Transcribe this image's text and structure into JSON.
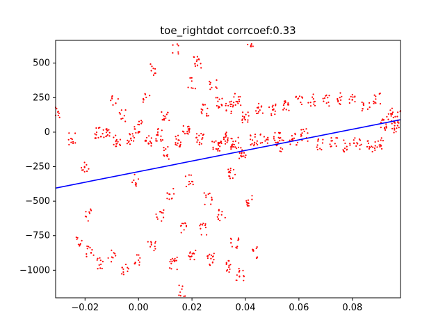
{
  "chart_data": {
    "type": "scatter",
    "title": "toe_rightdot corrcoef:0.33",
    "xlabel": "",
    "ylabel": "",
    "xlim": [
      -0.031,
      0.098
    ],
    "ylim": [
      -1200,
      665
    ],
    "xticks": [
      -0.02,
      0.0,
      0.02,
      0.04,
      0.06,
      0.08
    ],
    "xtick_labels": [
      "−0.02",
      "0.00",
      "0.02",
      "0.04",
      "0.06",
      "0.08"
    ],
    "yticks": [
      500,
      250,
      0,
      -250,
      -500,
      -750,
      -1000
    ],
    "ytick_labels": [
      "500",
      "250",
      "0",
      "−250",
      "−500",
      "−750",
      "−1000"
    ],
    "grid": false,
    "legend": "none",
    "scatter_color": "#ff0000",
    "line_color": "#0000ff",
    "fit_line": {
      "x": [
        -0.031,
        0.098
      ],
      "y": [
        -405,
        90
      ]
    },
    "clusters": [
      {
        "x": -0.03,
        "y": 145,
        "n": 8
      },
      {
        "x": -0.025,
        "y": -50,
        "n": 10
      },
      {
        "x": -0.022,
        "y": -800,
        "n": 8
      },
      {
        "x": -0.02,
        "y": -250,
        "n": 10
      },
      {
        "x": -0.019,
        "y": -600,
        "n": 8
      },
      {
        "x": -0.018,
        "y": -870,
        "n": 10
      },
      {
        "x": -0.015,
        "y": 0,
        "n": 12
      },
      {
        "x": -0.014,
        "y": -950,
        "n": 10
      },
      {
        "x": -0.012,
        "y": -20,
        "n": 14
      },
      {
        "x": -0.01,
        "y": -900,
        "n": 8
      },
      {
        "x": -0.009,
        "y": 240,
        "n": 8
      },
      {
        "x": -0.008,
        "y": -60,
        "n": 14
      },
      {
        "x": -0.006,
        "y": 120,
        "n": 8
      },
      {
        "x": -0.005,
        "y": -1000,
        "n": 10
      },
      {
        "x": -0.003,
        "y": -50,
        "n": 14
      },
      {
        "x": -0.001,
        "y": -350,
        "n": 8
      },
      {
        "x": 0.0,
        "y": 40,
        "n": 14
      },
      {
        "x": 0.0,
        "y": -930,
        "n": 10
      },
      {
        "x": 0.003,
        "y": 250,
        "n": 8
      },
      {
        "x": 0.004,
        "y": -60,
        "n": 14
      },
      {
        "x": 0.005,
        "y": -820,
        "n": 10
      },
      {
        "x": 0.006,
        "y": 450,
        "n": 8
      },
      {
        "x": 0.008,
        "y": -20,
        "n": 14
      },
      {
        "x": 0.008,
        "y": -600,
        "n": 10
      },
      {
        "x": 0.01,
        "y": -150,
        "n": 10
      },
      {
        "x": 0.01,
        "y": 120,
        "n": 12
      },
      {
        "x": 0.012,
        "y": -450,
        "n": 10
      },
      {
        "x": 0.013,
        "y": -950,
        "n": 14
      },
      {
        "x": 0.014,
        "y": 600,
        "n": 6
      },
      {
        "x": 0.015,
        "y": -60,
        "n": 14
      },
      {
        "x": 0.016,
        "y": -1150,
        "n": 8
      },
      {
        "x": 0.017,
        "y": -700,
        "n": 10
      },
      {
        "x": 0.018,
        "y": 20,
        "n": 14
      },
      {
        "x": 0.019,
        "y": -350,
        "n": 10
      },
      {
        "x": 0.02,
        "y": -880,
        "n": 12
      },
      {
        "x": 0.02,
        "y": 350,
        "n": 8
      },
      {
        "x": 0.022,
        "y": 510,
        "n": 14
      },
      {
        "x": 0.023,
        "y": -50,
        "n": 14
      },
      {
        "x": 0.024,
        "y": -700,
        "n": 10
      },
      {
        "x": 0.025,
        "y": 160,
        "n": 12
      },
      {
        "x": 0.026,
        "y": -480,
        "n": 10
      },
      {
        "x": 0.027,
        "y": -920,
        "n": 14
      },
      {
        "x": 0.028,
        "y": 350,
        "n": 8
      },
      {
        "x": 0.029,
        "y": -100,
        "n": 16
      },
      {
        "x": 0.03,
        "y": 220,
        "n": 12
      },
      {
        "x": 0.031,
        "y": -600,
        "n": 10
      },
      {
        "x": 0.032,
        "y": -40,
        "n": 18
      },
      {
        "x": 0.033,
        "y": -970,
        "n": 12
      },
      {
        "x": 0.034,
        "y": 180,
        "n": 14
      },
      {
        "x": 0.035,
        "y": -300,
        "n": 12
      },
      {
        "x": 0.036,
        "y": -80,
        "n": 18
      },
      {
        "x": 0.036,
        "y": -800,
        "n": 10
      },
      {
        "x": 0.037,
        "y": 240,
        "n": 14
      },
      {
        "x": 0.038,
        "y": -1030,
        "n": 12
      },
      {
        "x": 0.039,
        "y": -150,
        "n": 14
      },
      {
        "x": 0.04,
        "y": 100,
        "n": 14
      },
      {
        "x": 0.041,
        "y": -500,
        "n": 10
      },
      {
        "x": 0.042,
        "y": 640,
        "n": 6
      },
      {
        "x": 0.043,
        "y": -60,
        "n": 14
      },
      {
        "x": 0.044,
        "y": -870,
        "n": 10
      },
      {
        "x": 0.045,
        "y": 180,
        "n": 12
      },
      {
        "x": 0.047,
        "y": -40,
        "n": 12
      },
      {
        "x": 0.05,
        "y": 160,
        "n": 12
      },
      {
        "x": 0.052,
        "y": -30,
        "n": 12
      },
      {
        "x": 0.053,
        "y": -100,
        "n": 10
      },
      {
        "x": 0.055,
        "y": 200,
        "n": 12
      },
      {
        "x": 0.058,
        "y": -50,
        "n": 12
      },
      {
        "x": 0.06,
        "y": 220,
        "n": 10
      },
      {
        "x": 0.062,
        "y": -20,
        "n": 12
      },
      {
        "x": 0.065,
        "y": 230,
        "n": 10
      },
      {
        "x": 0.068,
        "y": -90,
        "n": 10
      },
      {
        "x": 0.07,
        "y": 230,
        "n": 10
      },
      {
        "x": 0.073,
        "y": -60,
        "n": 10
      },
      {
        "x": 0.075,
        "y": 240,
        "n": 10
      },
      {
        "x": 0.078,
        "y": -100,
        "n": 12
      },
      {
        "x": 0.08,
        "y": 230,
        "n": 10
      },
      {
        "x": 0.082,
        "y": -80,
        "n": 12
      },
      {
        "x": 0.085,
        "y": 200,
        "n": 10
      },
      {
        "x": 0.087,
        "y": -100,
        "n": 12
      },
      {
        "x": 0.089,
        "y": 250,
        "n": 10
      },
      {
        "x": 0.09,
        "y": -80,
        "n": 12
      },
      {
        "x": 0.092,
        "y": 60,
        "n": 14
      },
      {
        "x": 0.094,
        "y": 130,
        "n": 12
      },
      {
        "x": 0.096,
        "y": 40,
        "n": 14
      },
      {
        "x": 0.097,
        "y": 110,
        "n": 10
      }
    ]
  }
}
